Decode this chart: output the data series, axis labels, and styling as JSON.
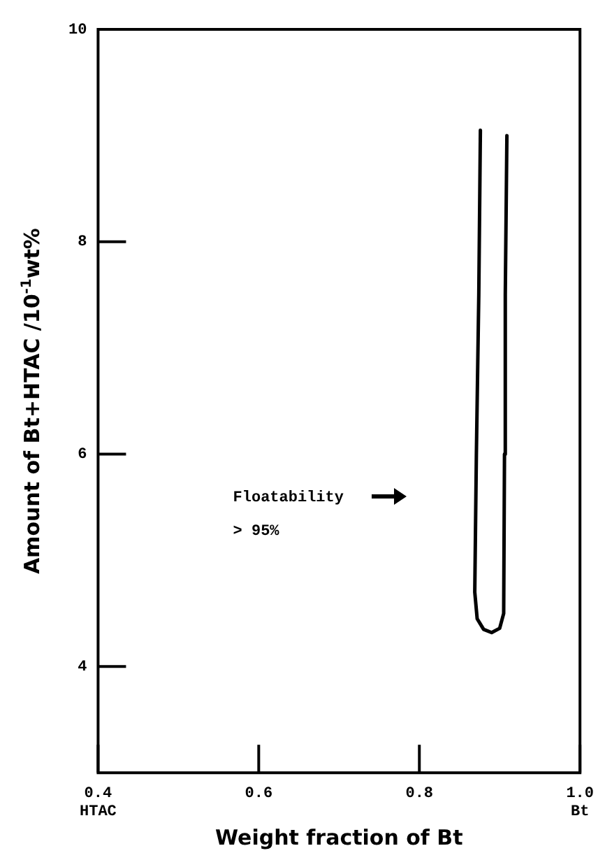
{
  "chart_data": {
    "type": "line",
    "xlabel": "Weight fraction of Bt",
    "ylabel": "Amount of Bt+HTAC /10$^{-1}$wt%",
    "x": [
      0.876,
      0.874,
      0.871,
      0.869,
      0.872,
      0.88,
      0.89,
      0.9,
      0.905,
      0.906,
      0.907,
      0.909
    ],
    "series": [
      {
        "color": "#000000",
        "values": [
          9.05,
          7.5,
          6.0,
          4.7,
          4.45,
          4.35,
          4.32,
          4.36,
          4.5,
          6.0,
          7.5,
          9.0
        ]
      }
    ],
    "xlim": [
      0.4,
      1.0
    ],
    "xticks": [
      {
        "value": 0.4,
        "label": "0.4\nHTAC"
      },
      0.6,
      0.8,
      {
        "value": 1.0,
        "label": "1.0\nBt"
      }
    ],
    "ylim": [
      3,
      10
    ],
    "yticks": [
      4,
      6,
      8,
      10
    ],
    "annotations": [
      "Floatability\n> 95%"
    ],
    "grid": false,
    "legend": false,
    "marker": "none",
    "line_style": "solid"
  }
}
